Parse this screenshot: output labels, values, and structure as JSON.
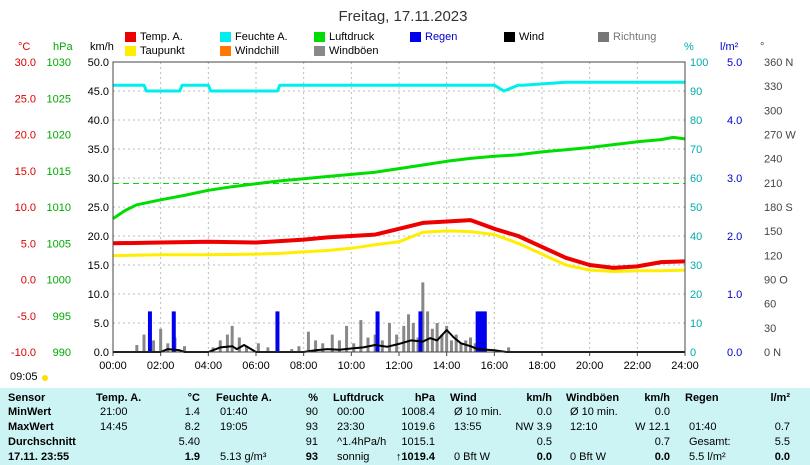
{
  "title": "Freitag, 17.11.2023",
  "legend": [
    {
      "label": "Temp. A.",
      "color": "#ee0000"
    },
    {
      "label": "Taupunkt",
      "color": "#ffee00"
    },
    {
      "label": "Feuchte A.",
      "color": "#00eeee"
    },
    {
      "label": "Windchill",
      "color": "#ff7700"
    },
    {
      "label": "Luftdruck",
      "color": "#00dd00"
    },
    {
      "label": "Windböen",
      "color": "#888888"
    },
    {
      "label": "Regen",
      "color": "#0000ee"
    },
    {
      "label": "Wind",
      "color": "#000000"
    },
    {
      "label": "Richtung",
      "color": "#777777"
    }
  ],
  "axes": {
    "temp": {
      "unit": "°C",
      "color": "#dd0000",
      "ticks": [
        "30.0",
        "25.0",
        "20.0",
        "15.0",
        "10.0",
        "5.0",
        "0.0",
        "-5.0",
        "-10.0"
      ]
    },
    "pressure": {
      "unit": "hPa",
      "color": "#00aa00",
      "ticks": [
        "1030",
        "1025",
        "1020",
        "1015",
        "1010",
        "1005",
        "1000",
        "995",
        "990"
      ]
    },
    "wind": {
      "unit": "km/h",
      "color": "#000000",
      "ticks": [
        "50.0",
        "45.0",
        "40.0",
        "35.0",
        "30.0",
        "25.0",
        "20.0",
        "15.0",
        "10.0",
        "5.0",
        "0.0"
      ]
    },
    "humidity": {
      "unit": "%",
      "color": "#00aaaa",
      "ticks": [
        "100",
        "90",
        "80",
        "70",
        "60",
        "50",
        "40",
        "30",
        "20",
        "10",
        "0"
      ]
    },
    "rain": {
      "unit": "l/m²",
      "color": "#0000cc",
      "ticks": [
        "5.0",
        "4.0",
        "3.0",
        "2.0",
        "1.0",
        "0.0"
      ]
    },
    "direction": {
      "unit": "°",
      "color": "#444444",
      "ticks": [
        "360 N",
        "330",
        "300",
        "270 W",
        "240",
        "210",
        "180 S",
        "150",
        "120",
        "90 O",
        "60",
        "30",
        "0 N"
      ]
    },
    "x_ticks": [
      "00:00",
      "02:00",
      "04:00",
      "06:00",
      "08:00",
      "10:00",
      "12:00",
      "14:00",
      "16:00",
      "18:00",
      "20:00",
      "22:00",
      "24:00"
    ]
  },
  "sunrise": "09:05",
  "chart_data": {
    "type": "line",
    "title": "Freitag, 17.11.2023",
    "x_unit": "hours",
    "xlim": [
      0,
      24
    ],
    "series": [
      {
        "name": "Temp. A.",
        "axis": "temp",
        "x": [
          0,
          2,
          4,
          6,
          7,
          8,
          9,
          10,
          11,
          12,
          13,
          14,
          15,
          15.5,
          16,
          17,
          18,
          19,
          20,
          21,
          22,
          23,
          24
        ],
        "values": [
          5.0,
          5.1,
          5.2,
          5.1,
          5.3,
          5.5,
          5.8,
          6.0,
          6.2,
          7.0,
          7.8,
          8.0,
          8.2,
          7.6,
          7.0,
          6.0,
          4.5,
          3.0,
          2.0,
          1.6,
          1.8,
          2.4,
          2.5
        ]
      },
      {
        "name": "Taupunkt",
        "axis": "temp",
        "x": [
          0,
          2,
          4,
          6,
          7,
          8,
          9,
          10,
          11,
          12,
          13,
          14,
          15,
          16,
          17,
          18,
          19,
          20,
          21,
          22,
          23,
          24
        ],
        "values": [
          3.3,
          3.4,
          3.4,
          3.5,
          3.6,
          3.8,
          4.0,
          4.3,
          4.8,
          5.2,
          6.5,
          6.7,
          6.6,
          6.2,
          5.0,
          3.5,
          2.0,
          1.3,
          1.1,
          1.2,
          1.2,
          1.3
        ]
      },
      {
        "name": "Feuchte A.",
        "axis": "humidity",
        "x": [
          0,
          0.1,
          1.3,
          1.4,
          2.8,
          2.9,
          4.0,
          4.1,
          6.9,
          7.0,
          13.0,
          14.0,
          15.0,
          16.0,
          16.4,
          17.0,
          17.2,
          19.0,
          21.0,
          24.0
        ],
        "values": [
          92,
          92,
          92,
          90,
          90,
          92,
          92,
          90,
          90,
          92,
          92,
          92,
          92,
          92,
          90,
          92,
          92,
          93,
          93,
          93
        ]
      },
      {
        "name": "Luftdruck",
        "axis": "pressure",
        "x": [
          0,
          0.5,
          1,
          2,
          3,
          4,
          5,
          6,
          7,
          8,
          9,
          10,
          11,
          12,
          13,
          14,
          15,
          16,
          17,
          18,
          19,
          20,
          21,
          22,
          23,
          23.5,
          24
        ],
        "values": [
          1008.4,
          1009.5,
          1010.3,
          1011.0,
          1011.6,
          1012.3,
          1012.8,
          1013.2,
          1013.6,
          1013.9,
          1014.2,
          1014.5,
          1014.8,
          1015.3,
          1015.8,
          1016.3,
          1016.7,
          1017.0,
          1017.2,
          1017.6,
          1017.9,
          1018.2,
          1018.6,
          1019.0,
          1019.3,
          1019.6,
          1019.4
        ]
      },
      {
        "name": "Wind",
        "axis": "wind",
        "x": [
          0,
          1,
          2,
          2.3,
          2.8,
          3,
          4,
          4.5,
          5,
          5.2,
          5.5,
          6,
          7,
          7.5,
          8,
          8.5,
          9,
          9.5,
          10,
          10.5,
          11,
          11.5,
          12,
          12.5,
          13,
          13.3,
          13.6,
          14,
          14.3,
          14.6,
          15,
          15.3,
          16,
          16.5,
          17,
          18,
          20,
          22,
          24
        ],
        "values": [
          0,
          0,
          0,
          0.5,
          0.3,
          0,
          0,
          0.8,
          1.0,
          0.5,
          1.2,
          0,
          0,
          0,
          0,
          0.3,
          0.5,
          0.4,
          0.6,
          0.8,
          1.2,
          0.9,
          1.4,
          2.0,
          1.8,
          2.4,
          2.0,
          3.8,
          2.5,
          1.5,
          1.0,
          0.5,
          0.3,
          0,
          0,
          0,
          0,
          0,
          0
        ]
      }
    ],
    "bars": [
      {
        "name": "Windböen",
        "axis": "wind",
        "x": [
          1.0,
          1.3,
          1.7,
          2.0,
          2.3,
          2.6,
          3.0,
          4.2,
          4.5,
          4.8,
          5.0,
          5.3,
          5.6,
          6.1,
          6.5,
          7.5,
          7.8,
          8.2,
          8.5,
          8.8,
          9.2,
          9.5,
          9.8,
          10.1,
          10.4,
          10.7,
          11.0,
          11.3,
          11.6,
          11.9,
          12.2,
          12.4,
          12.6,
          12.8,
          13.0,
          13.2,
          13.4,
          13.6,
          13.8,
          14.0,
          14.2,
          14.4,
          14.6,
          14.8,
          15.0,
          15.2,
          15.4,
          15.6,
          16.6
        ],
        "values": [
          1.2,
          3.0,
          2.0,
          4.0,
          1.5,
          2.5,
          1.0,
          0.8,
          2.0,
          3.0,
          4.5,
          2.5,
          1.0,
          1.5,
          0.8,
          0.5,
          1.0,
          3.5,
          2.0,
          1.5,
          3.0,
          2.0,
          4.5,
          1.5,
          5.5,
          2.5,
          3.0,
          2.0,
          5.0,
          3.0,
          4.5,
          6.5,
          5.0,
          2.5,
          12.0,
          7.0,
          4.0,
          5.0,
          3.0,
          4.5,
          2.0,
          3.0,
          1.5,
          2.0,
          2.5,
          1.5,
          2.0,
          1.0,
          0.8
        ]
      },
      {
        "name": "Regen",
        "axis": "rain",
        "x": [
          1.55,
          2.55,
          6.9,
          11.1,
          12.9,
          15.3,
          15.45,
          15.6
        ],
        "values": [
          0.7,
          0.7,
          0.7,
          0.7,
          0.7,
          0.7,
          0.7,
          0.7
        ]
      }
    ],
    "reference_lines": [
      {
        "axis": "pressure",
        "value": 1013.25,
        "style": "dashed",
        "color": "#00dd00"
      }
    ],
    "grid": true,
    "ylim": {
      "temp": [
        -10,
        30
      ],
      "pressure": [
        990,
        1030
      ],
      "wind": [
        0,
        50
      ],
      "humidity": [
        0,
        100
      ],
      "rain": [
        0,
        5
      ],
      "direction": [
        0,
        360
      ]
    }
  },
  "stats": {
    "headers": [
      {
        "label": "Sensor",
        "unit": ""
      },
      {
        "label": "Temp. A.",
        "unit": "°C"
      },
      {
        "label": "Feuchte A.",
        "unit": "%"
      },
      {
        "label": "Luftdruck",
        "unit": "hPa"
      },
      {
        "label": "Wind",
        "unit": "km/h"
      },
      {
        "label": "Windböen",
        "unit": "km/h"
      },
      {
        "label": "Regen",
        "unit": "l/m²"
      }
    ],
    "rows": [
      {
        "label": "MinWert",
        "cells": [
          [
            "21:00",
            "1.4"
          ],
          [
            "01:40",
            "90"
          ],
          [
            "00:00",
            "1008.4"
          ],
          [
            "Ø 10 min.",
            "0.0"
          ],
          [
            "Ø 10 min.",
            "0.0"
          ],
          [
            "",
            ""
          ]
        ]
      },
      {
        "label": "MaxWert",
        "cells": [
          [
            "14:45",
            "8.2"
          ],
          [
            "19:05",
            "93"
          ],
          [
            "23:30",
            "1019.6"
          ],
          [
            "13:55",
            "NW 3.9"
          ],
          [
            "12:10",
            "W 12.1"
          ],
          [
            "01:40",
            "0.7"
          ]
        ]
      },
      {
        "label": "Durchschnitt",
        "cells": [
          [
            "",
            "5.40"
          ],
          [
            "",
            "91"
          ],
          [
            "^1.4hPa/h",
            "1015.1"
          ],
          [
            "",
            "0.5"
          ],
          [
            "",
            "0.7"
          ],
          [
            "Gesamt:",
            "5.5"
          ]
        ]
      },
      {
        "label": "17.11. 23:55",
        "cells": [
          [
            "",
            "1.9"
          ],
          [
            "5.13 g/m³",
            "93"
          ],
          [
            "sonnig",
            "↑1019.4"
          ],
          [
            "0 Bft W",
            "0.0"
          ],
          [
            "0 Bft W",
            "0.0"
          ],
          [
            "5.5 l/m²",
            "0.0"
          ]
        ]
      }
    ]
  }
}
